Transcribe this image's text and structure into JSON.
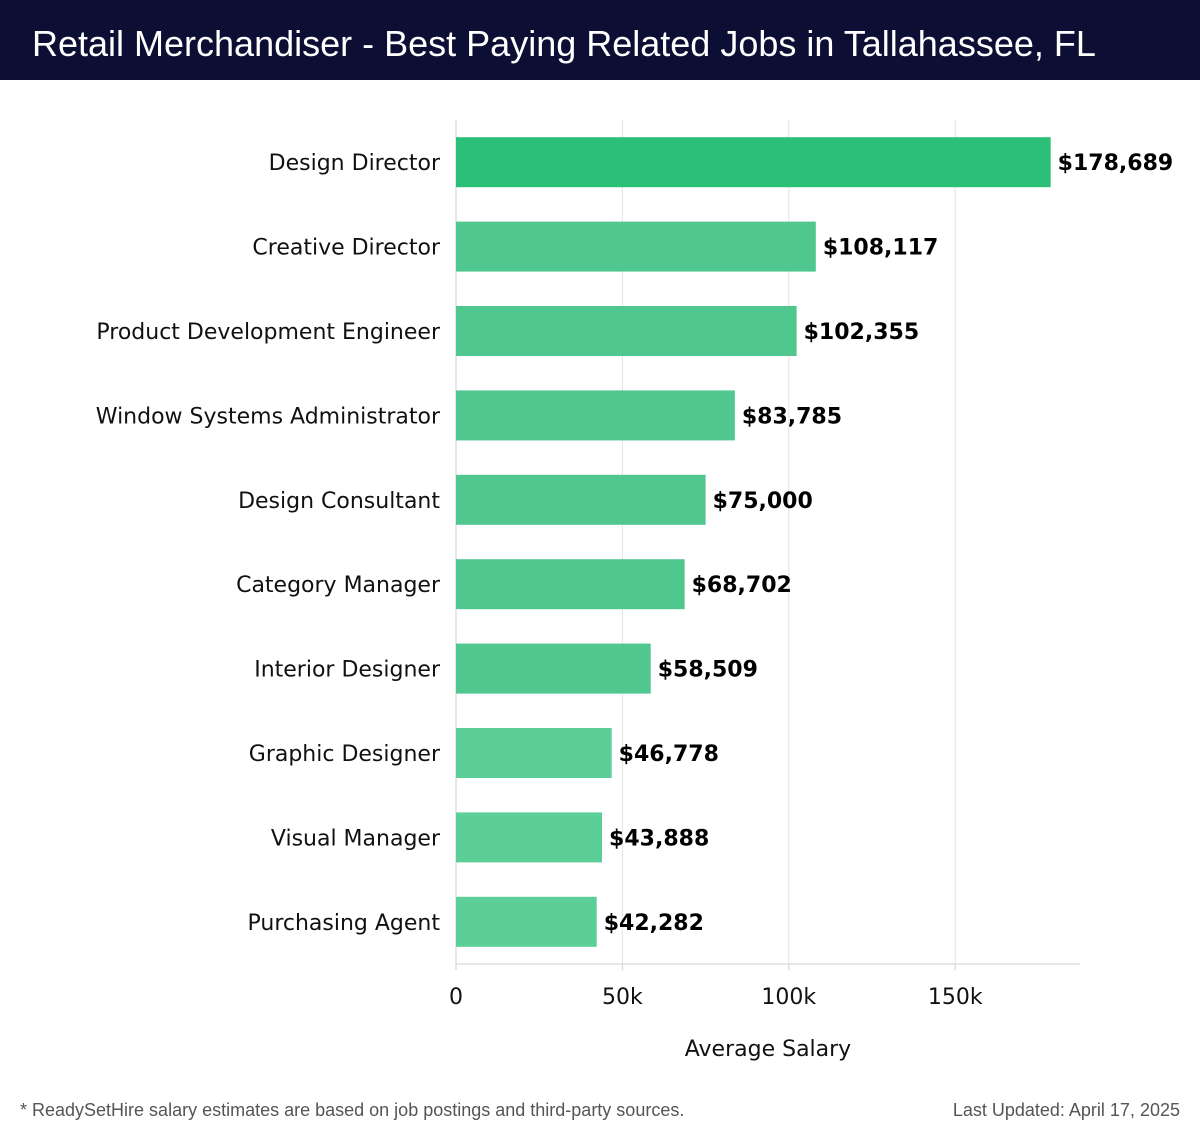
{
  "header": {
    "title": "Retail Merchandiser - Best Paying Related Jobs in Tallahassee, FL"
  },
  "chart_data": {
    "type": "bar",
    "orientation": "horizontal",
    "categories": [
      "Design Director",
      "Creative Director",
      "Product Development Engineer",
      "Window Systems Administrator",
      "Design Consultant",
      "Category Manager",
      "Interior Designer",
      "Graphic Designer",
      "Visual Manager",
      "Purchasing Agent"
    ],
    "values": [
      178689,
      108117,
      102355,
      83785,
      75000,
      68702,
      58509,
      46778,
      43888,
      42282
    ],
    "data_labels": [
      "$178,689",
      "$108,117",
      "$102,355",
      "$83,785",
      "$75,000",
      "$68,702",
      "$58,509",
      "$46,778",
      "$43,888",
      "$42,282"
    ],
    "xlabel": "Average Salary",
    "ylabel": "",
    "xlim": [
      0,
      187500
    ],
    "xticks": [
      0,
      50000,
      100000,
      150000
    ],
    "xtick_labels": [
      "0",
      "50k",
      "100k",
      "150k"
    ],
    "grid": "vertical",
    "bar_color_top": "#2bbf78",
    "bar_color": "#4fc78f",
    "bar_color_light": "#5cce98"
  },
  "footer": {
    "note": "* ReadySetHire salary estimates are based on job postings and third-party sources.",
    "updated": "Last Updated: April 17, 2025"
  }
}
